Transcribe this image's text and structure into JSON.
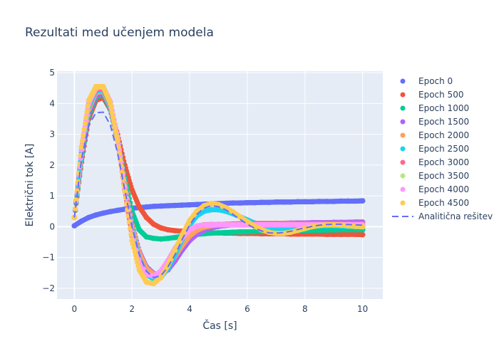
{
  "chart_data": {
    "type": "scatter",
    "title": "Rezultati med učenjem modela",
    "xlabel": "Čas [s]",
    "ylabel": "Električni tok [A]",
    "xlim": [
      -0.6,
      10.7
    ],
    "ylim": [
      -2.35,
      5.05
    ],
    "x_ticks": [
      0,
      2,
      4,
      6,
      8,
      10
    ],
    "x_tick_labels": [
      "0",
      "2",
      "4",
      "6",
      "8",
      "10"
    ],
    "y_ticks": [
      -2,
      -1,
      0,
      1,
      2,
      3,
      4,
      5
    ],
    "y_tick_labels": [
      "−2",
      "−1",
      "0",
      "1",
      "2",
      "3",
      "4",
      "5"
    ],
    "grid": true,
    "legend_position": "right",
    "x": [
      0,
      0.25,
      0.5,
      0.75,
      1.0,
      1.25,
      1.5,
      1.75,
      2.0,
      2.25,
      2.5,
      2.75,
      3.0,
      3.25,
      3.5,
      3.75,
      4.0,
      4.25,
      4.5,
      4.75,
      5.0,
      5.25,
      5.5,
      5.75,
      6.0,
      6.25,
      6.5,
      6.75,
      7.0,
      7.25,
      7.5,
      7.75,
      8.0,
      8.25,
      8.5,
      8.75,
      9.0,
      9.25,
      9.5,
      9.75,
      10.0
    ],
    "series": [
      {
        "name": "Epoch 0",
        "color": "#636efa",
        "mode": "markers",
        "values": [
          0.03,
          0.18,
          0.3,
          0.38,
          0.44,
          0.49,
          0.53,
          0.57,
          0.6,
          0.62,
          0.64,
          0.66,
          0.67,
          0.68,
          0.69,
          0.7,
          0.71,
          0.72,
          0.73,
          0.74,
          0.75,
          0.76,
          0.77,
          0.77,
          0.78,
          0.78,
          0.79,
          0.79,
          0.8,
          0.8,
          0.8,
          0.81,
          0.81,
          0.81,
          0.82,
          0.82,
          0.82,
          0.83,
          0.83,
          0.83,
          0.84
        ]
      },
      {
        "name": "Epoch 500",
        "color": "#ef553b",
        "mode": "markers",
        "values": [
          0.3,
          2.1,
          3.5,
          4.1,
          4.2,
          3.8,
          3.0,
          2.0,
          1.2,
          0.65,
          0.3,
          0.08,
          -0.04,
          -0.1,
          -0.13,
          -0.15,
          -0.17,
          -0.18,
          -0.19,
          -0.2,
          -0.2,
          -0.21,
          -0.21,
          -0.22,
          -0.22,
          -0.22,
          -0.23,
          -0.23,
          -0.23,
          -0.23,
          -0.24,
          -0.24,
          -0.24,
          -0.24,
          -0.24,
          -0.25,
          -0.25,
          -0.25,
          -0.25,
          -0.25,
          -0.26
        ]
      },
      {
        "name": "Epoch 1000",
        "color": "#00cc96",
        "mode": "markers",
        "values": [
          0.3,
          2.2,
          3.6,
          4.2,
          4.3,
          3.8,
          2.8,
          1.6,
          0.5,
          -0.1,
          -0.33,
          -0.38,
          -0.4,
          -0.38,
          -0.35,
          -0.31,
          -0.28,
          -0.25,
          -0.23,
          -0.21,
          -0.2,
          -0.19,
          -0.18,
          -0.17,
          -0.17,
          -0.16,
          -0.16,
          -0.15,
          -0.15,
          -0.14,
          -0.14,
          -0.13,
          -0.13,
          -0.12,
          -0.12,
          -0.11,
          -0.11,
          -0.1,
          -0.1,
          -0.1,
          -0.1
        ]
      },
      {
        "name": "Epoch 1500",
        "color": "#ab63fa",
        "mode": "markers",
        "values": [
          0.3,
          2.3,
          3.7,
          4.25,
          4.35,
          3.85,
          2.8,
          1.4,
          0.1,
          -0.8,
          -1.3,
          -1.52,
          -1.55,
          -1.4,
          -1.1,
          -0.75,
          -0.45,
          -0.25,
          -0.12,
          -0.04,
          0.01,
          0.04,
          0.06,
          0.07,
          0.08,
          0.09,
          0.1,
          0.1,
          0.11,
          0.11,
          0.12,
          0.12,
          0.12,
          0.13,
          0.13,
          0.13,
          0.14,
          0.14,
          0.14,
          0.15,
          0.15
        ]
      },
      {
        "name": "Epoch 2000",
        "color": "#ffa15a",
        "mode": "markers",
        "values": [
          0.3,
          2.35,
          3.8,
          4.35,
          4.4,
          3.9,
          2.8,
          1.4,
          0.05,
          -0.85,
          -1.35,
          -1.55,
          -1.5,
          -1.3,
          -0.95,
          -0.6,
          -0.3,
          -0.12,
          -0.02,
          0.03,
          0.06,
          0.08,
          0.09,
          0.1,
          0.1,
          0.11,
          0.11,
          0.11,
          0.11,
          0.11,
          0.11,
          0.1,
          0.1,
          0.1,
          0.1,
          0.1,
          0.1,
          0.1,
          0.1,
          0.1,
          0.1
        ]
      },
      {
        "name": "Epoch 2500",
        "color": "#19d3f3",
        "mode": "markers",
        "values": [
          0.3,
          2.4,
          3.9,
          4.4,
          4.45,
          3.95,
          2.85,
          1.35,
          -0.1,
          -1.05,
          -1.55,
          -1.7,
          -1.65,
          -1.35,
          -0.9,
          -0.4,
          0.05,
          0.35,
          0.5,
          0.55,
          0.55,
          0.5,
          0.42,
          0.32,
          0.22,
          0.12,
          0.04,
          -0.01,
          -0.04,
          -0.05,
          -0.04,
          -0.02,
          0.0,
          0.02,
          0.03,
          0.03,
          0.03,
          0.02,
          0.01,
          0.0,
          -0.01
        ]
      },
      {
        "name": "Epoch 3000",
        "color": "#ff6692",
        "mode": "markers",
        "values": [
          0.3,
          2.5,
          4.0,
          4.45,
          4.5,
          4.0,
          2.8,
          1.2,
          -0.3,
          -1.2,
          -1.55,
          -1.6,
          -1.45,
          -1.1,
          -0.7,
          -0.35,
          -0.1,
          0.02,
          0.06,
          0.07,
          0.07,
          0.07,
          0.08,
          0.09,
          0.1,
          0.1,
          0.1,
          0.1,
          0.1,
          0.1,
          0.1,
          0.1,
          0.1,
          0.1,
          0.1,
          0.1,
          0.1,
          0.1,
          0.1,
          0.1,
          0.1
        ]
      },
      {
        "name": "Epoch 3500",
        "color": "#b6e880",
        "mode": "markers",
        "values": [
          0.3,
          2.5,
          4.0,
          4.5,
          4.55,
          4.05,
          2.9,
          1.3,
          -0.2,
          -1.15,
          -1.55,
          -1.6,
          -1.45,
          -1.1,
          -0.7,
          -0.35,
          -0.1,
          0.02,
          0.05,
          0.06,
          0.06,
          0.06,
          0.06,
          0.06,
          0.06,
          0.06,
          0.06,
          0.06,
          0.06,
          0.06,
          0.06,
          0.06,
          0.06,
          0.06,
          0.06,
          0.06,
          0.06,
          0.06,
          0.06,
          0.06,
          0.06
        ]
      },
      {
        "name": "Epoch 4000",
        "color": "#ff97ff",
        "mode": "markers",
        "values": [
          0.3,
          2.5,
          4.0,
          4.5,
          4.55,
          4.05,
          2.9,
          1.3,
          -0.2,
          -1.15,
          -1.55,
          -1.6,
          -1.45,
          -1.1,
          -0.7,
          -0.35,
          -0.1,
          0.02,
          0.05,
          0.06,
          0.06,
          0.06,
          0.06,
          0.06,
          0.06,
          0.06,
          0.06,
          0.06,
          0.06,
          0.06,
          0.06,
          0.06,
          0.06,
          0.06,
          0.06,
          0.06,
          0.06,
          0.06,
          0.06,
          0.06,
          0.06
        ]
      },
      {
        "name": "Epoch 4500",
        "color": "#fecb52",
        "mode": "markers",
        "values": [
          0.3,
          2.6,
          4.1,
          4.55,
          4.55,
          4.0,
          2.8,
          1.15,
          -0.45,
          -1.4,
          -1.8,
          -1.85,
          -1.65,
          -1.25,
          -0.75,
          -0.25,
          0.2,
          0.5,
          0.68,
          0.75,
          0.72,
          0.62,
          0.48,
          0.32,
          0.16,
          0.02,
          -0.1,
          -0.18,
          -0.22,
          -0.22,
          -0.18,
          -0.12,
          -0.06,
          0.0,
          0.04,
          0.06,
          0.06,
          0.05,
          0.03,
          0.01,
          0.0
        ]
      },
      {
        "name": "Analitična rešitev",
        "color": "#636efa",
        "mode": "dash",
        "values": [
          0.3,
          2.2,
          3.3,
          3.7,
          3.72,
          3.3,
          2.4,
          1.2,
          0.0,
          -0.9,
          -1.45,
          -1.65,
          -1.6,
          -1.3,
          -0.9,
          -0.4,
          0.05,
          0.4,
          0.6,
          0.68,
          0.65,
          0.55,
          0.4,
          0.24,
          0.08,
          -0.05,
          -0.14,
          -0.2,
          -0.21,
          -0.19,
          -0.15,
          -0.09,
          -0.04,
          0.01,
          0.05,
          0.07,
          0.08,
          0.08,
          0.07,
          0.06,
          0.05
        ]
      }
    ]
  }
}
